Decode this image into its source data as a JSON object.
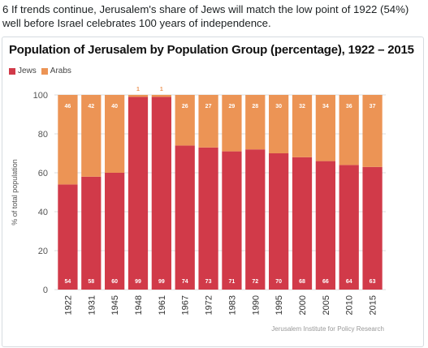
{
  "tweet": {
    "text": "6 If trends continue, Jerusalem's share of Jews will match the low point of 1922 (54%) well before Israel celebrates 100 years of independence."
  },
  "chart_data": {
    "type": "bar",
    "stacked": true,
    "title": "Population of Jerusalem by Population Group (percentage), 1922 – 2015",
    "ylabel": "% of total population",
    "xlabel": "",
    "ylim": [
      0,
      100
    ],
    "yticks": [
      0,
      20,
      40,
      60,
      80,
      100
    ],
    "categories": [
      "1922",
      "1931",
      "1945",
      "1948",
      "1961",
      "1967",
      "1972",
      "1983",
      "1990",
      "1995",
      "2000",
      "2005",
      "2010",
      "2015"
    ],
    "series": [
      {
        "name": "Jews",
        "color": "#d13a49",
        "values": [
          54,
          58,
          60,
          99,
          99,
          74,
          73,
          71,
          72,
          70,
          68,
          66,
          64,
          63
        ]
      },
      {
        "name": "Arabs",
        "color": "#ec9455",
        "values": [
          46,
          42,
          40,
          1,
          1,
          26,
          27,
          29,
          28,
          30,
          32,
          34,
          36,
          37
        ]
      }
    ],
    "legend": "top-left",
    "grid": true,
    "source": "Jerusalem Institute for Policy Research"
  }
}
